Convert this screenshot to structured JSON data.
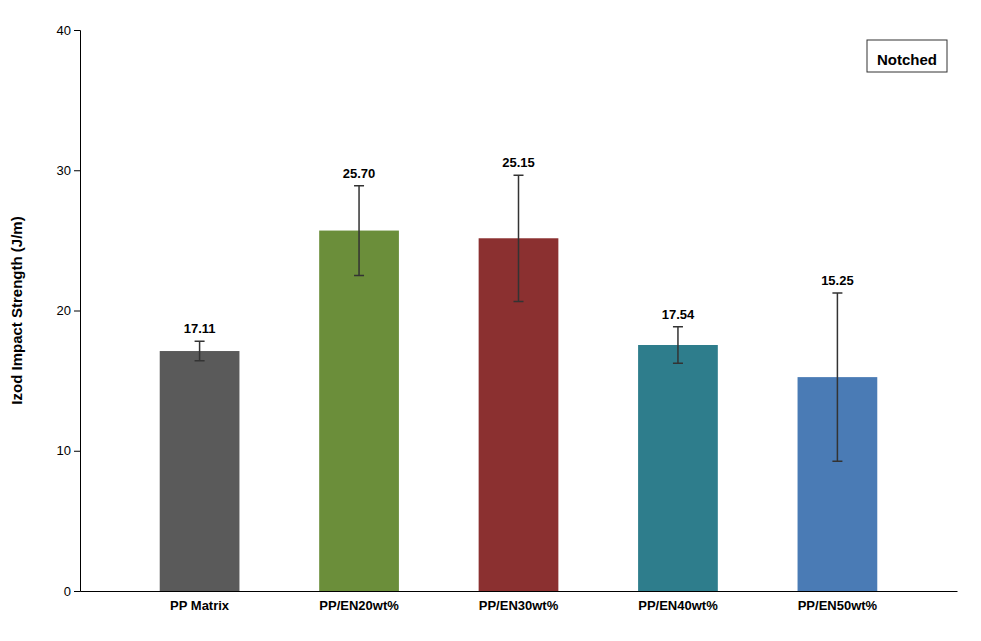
{
  "chart_data": {
    "type": "bar",
    "categories": [
      "PP Matrix",
      "PP/EN20wt%",
      "PP/EN30wt%",
      "PP/EN40wt%",
      "PP/EN50wt%"
    ],
    "series": [
      {
        "name": "Notched",
        "values": [
          17.11,
          25.7,
          25.15,
          17.54,
          15.25
        ],
        "value_labels": [
          "17.11",
          "25.70",
          "25.15",
          "17.54",
          "15.25"
        ],
        "errors": [
          0.7,
          3.2,
          4.5,
          1.3,
          6.0
        ],
        "colors": [
          "#5A5A5A",
          "#6B8E3A",
          "#8B3030",
          "#2E7D8C",
          "#4A7BB5"
        ]
      }
    ],
    "ylabel": "Izod Impact Strength (J/m)",
    "ylim": [
      0,
      40
    ],
    "yticks": [
      0,
      10,
      20,
      30,
      40
    ],
    "grid": false,
    "legend": "upper right",
    "data_labels": true
  }
}
